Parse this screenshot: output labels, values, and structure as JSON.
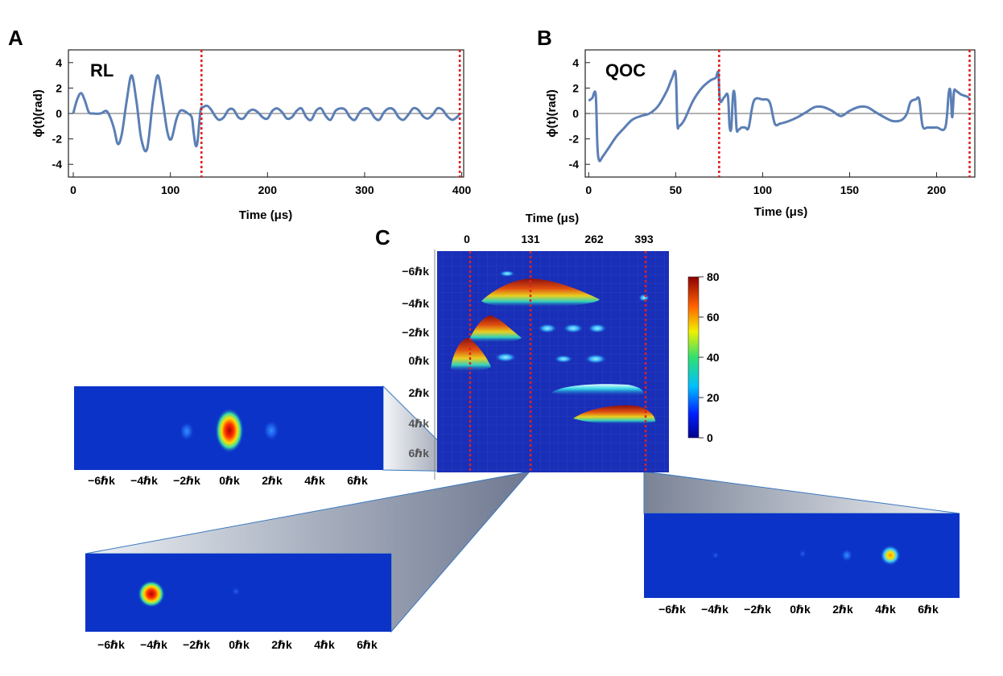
{
  "panels": {
    "A": {
      "letter": "A",
      "tag": "RL",
      "ylabel": "ϕ(t)(rad)",
      "xlabel": "Time (μs)"
    },
    "B": {
      "letter": "B",
      "tag": "QOC",
      "ylabel": "ϕ(t)(rad)",
      "xlabel": "Time (μs)"
    },
    "C": {
      "letter": "C",
      "xlabel": "Time (μs)",
      "colorbar_ticks": [
        "80",
        "60",
        "40",
        "20",
        "0"
      ]
    }
  },
  "colors": {
    "curve": "#5b7fb5",
    "marker": "#e02020",
    "heatmap_bg": "#1a2fb8",
    "inset_bg": "#0b33c8"
  },
  "chart_data": [
    {
      "type": "line",
      "panel": "A",
      "title": "RL",
      "xlabel": "Time (μs)",
      "ylabel": "ϕ(t)(rad)",
      "xlim": [
        -5,
        402
      ],
      "ylim": [
        -5,
        5
      ],
      "xticks": [
        0,
        100,
        200,
        300,
        400
      ],
      "yticks": [
        -4,
        -2,
        0,
        2,
        4
      ],
      "markers_x": [
        132,
        398
      ],
      "series": [
        {
          "x": [
            0,
            4,
            8,
            12,
            16,
            20,
            28,
            34,
            38,
            42,
            46,
            50,
            55,
            60,
            65,
            70,
            76,
            82,
            87,
            92,
            97,
            101,
            106,
            110,
            114,
            118,
            122,
            124,
            126,
            128,
            131,
            134,
            138,
            142,
            146,
            150,
            155,
            160,
            165,
            170,
            175,
            180,
            185,
            190,
            195,
            200,
            205,
            210,
            215,
            220,
            225,
            230,
            235,
            240,
            245,
            250,
            255,
            260,
            265,
            270,
            275,
            280,
            285,
            290,
            295,
            300,
            305,
            310,
            315,
            320,
            325,
            330,
            335,
            340,
            345,
            350,
            355,
            360,
            365,
            370,
            375,
            380,
            385,
            390,
            395,
            398
          ],
          "y": [
            0,
            1.1,
            1.6,
            1.0,
            0.1,
            0,
            0,
            0.2,
            -0.3,
            -1.2,
            -2.4,
            -1.6,
            1.0,
            3.0,
            1.0,
            -2.0,
            -2.8,
            1.0,
            3.0,
            1.0,
            -1.5,
            -2.0,
            -0.5,
            0.2,
            0.2,
            0,
            -0.3,
            -1.5,
            -2.5,
            -2.2,
            0.2,
            0.5,
            0.6,
            0.3,
            -0.2,
            -0.5,
            -0.3,
            0.3,
            0.3,
            -0.3,
            -0.4,
            0.1,
            0.3,
            0.1,
            -0.3,
            -0.4,
            0.2,
            0.4,
            0.1,
            -0.4,
            -0.3,
            0.2,
            0.4,
            -0.3,
            -0.5,
            0.2,
            0.4,
            -0.2,
            -0.5,
            0.2,
            0.4,
            0.3,
            -0.3,
            -0.5,
            0.1,
            0.4,
            0.3,
            -0.3,
            -0.5,
            0.1,
            0.4,
            0.3,
            -0.3,
            -0.5,
            -0.1,
            0.4,
            0.3,
            -0.2,
            -0.4,
            -0.1,
            0.4,
            0.3,
            -0.2,
            -0.5,
            -0.3,
            0
          ]
        }
      ]
    },
    {
      "type": "line",
      "panel": "B",
      "title": "QOC",
      "xlabel": "Time (μs)",
      "ylabel": "ϕ(t)(rad)",
      "xlim": [
        -2,
        222
      ],
      "ylim": [
        -5,
        5
      ],
      "xticks": [
        0,
        50,
        100,
        150,
        200
      ],
      "yticks": [
        -4,
        -2,
        0,
        2,
        4
      ],
      "markers_x": [
        75,
        219
      ],
      "series": [
        {
          "x": [
            0,
            2,
            4,
            5,
            6,
            8,
            12,
            16,
            20,
            25,
            30,
            35,
            40,
            45,
            48,
            50,
            51,
            52,
            55,
            60,
            65,
            70,
            73,
            74.5,
            75.5,
            78,
            80,
            81,
            82,
            83,
            84,
            85,
            86,
            87,
            88,
            90,
            92,
            95,
            100,
            104,
            107,
            110,
            115,
            120,
            125,
            130,
            135,
            140,
            145,
            150,
            155,
            160,
            165,
            170,
            175,
            180,
            183,
            185,
            188,
            190,
            192,
            195,
            200,
            205,
            207,
            208,
            209,
            210,
            211,
            212,
            214,
            216,
            218,
            219
          ],
          "y": [
            1.0,
            1.2,
            1.5,
            -2.5,
            -3.7,
            -3.4,
            -2.6,
            -1.8,
            -1.2,
            -0.5,
            -0.2,
            0,
            0.6,
            1.8,
            2.8,
            3.1,
            -0.8,
            -1.0,
            -0.5,
            1.0,
            2.0,
            2.6,
            2.8,
            3.2,
            1.0,
            1.3,
            1.4,
            -1.0,
            -1.1,
            1.5,
            1.4,
            -1.2,
            -1.3,
            -1.2,
            -1.1,
            -1.1,
            -1.1,
            1.0,
            1.1,
            0.9,
            -0.8,
            -0.8,
            -0.6,
            -0.3,
            0.1,
            0.5,
            0.5,
            0.2,
            -0.2,
            0.2,
            0.5,
            0.5,
            0.1,
            -0.3,
            -0.6,
            -0.5,
            0,
            0.9,
            1.1,
            1.1,
            -1.0,
            -1.1,
            -1.1,
            -1.1,
            1.6,
            1.7,
            -0.3,
            1.7,
            1.8,
            1.7,
            1.5,
            1.4,
            1.3,
            1.1
          ]
        }
      ]
    },
    {
      "type": "heatmap",
      "panel": "C",
      "xlabel": "Time (μs)",
      "xtick_labels": [
        "0",
        "131",
        "262",
        "393"
      ],
      "ytick_labels": [
        "−6ℏk",
        "−4ℏk",
        "−2ℏk",
        "0ℏk",
        "2ℏk",
        "4ℏk",
        "6ℏk"
      ],
      "colorbar_range": [
        0,
        80
      ],
      "markers_x": [
        "0",
        "131",
        "393"
      ]
    },
    {
      "type": "heatmap",
      "panel": "inset-0",
      "xtick_labels": [
        "−6ℏk",
        "−4ℏk",
        "−2ℏk",
        "0ℏk",
        "2ℏk",
        "4ℏk",
        "6ℏk"
      ],
      "peak_momentum": "0ℏk",
      "side_peaks": [
        "−2ℏk",
        "2ℏk"
      ]
    },
    {
      "type": "heatmap",
      "panel": "inset-131",
      "xtick_labels": [
        "−6ℏk",
        "−4ℏk",
        "−2ℏk",
        "0ℏk",
        "2ℏk",
        "4ℏk",
        "6ℏk"
      ],
      "peak_momentum": "−4ℏk",
      "side_peaks": [
        "0ℏk"
      ]
    },
    {
      "type": "heatmap",
      "panel": "inset-393",
      "xtick_labels": [
        "−6ℏk",
        "−4ℏk",
        "−2ℏk",
        "0ℏk",
        "2ℏk",
        "4ℏk",
        "6ℏk"
      ],
      "peak_momentum": "4ℏk",
      "side_peaks": [
        "−4ℏk",
        "0ℏk",
        "2ℏk"
      ]
    }
  ]
}
